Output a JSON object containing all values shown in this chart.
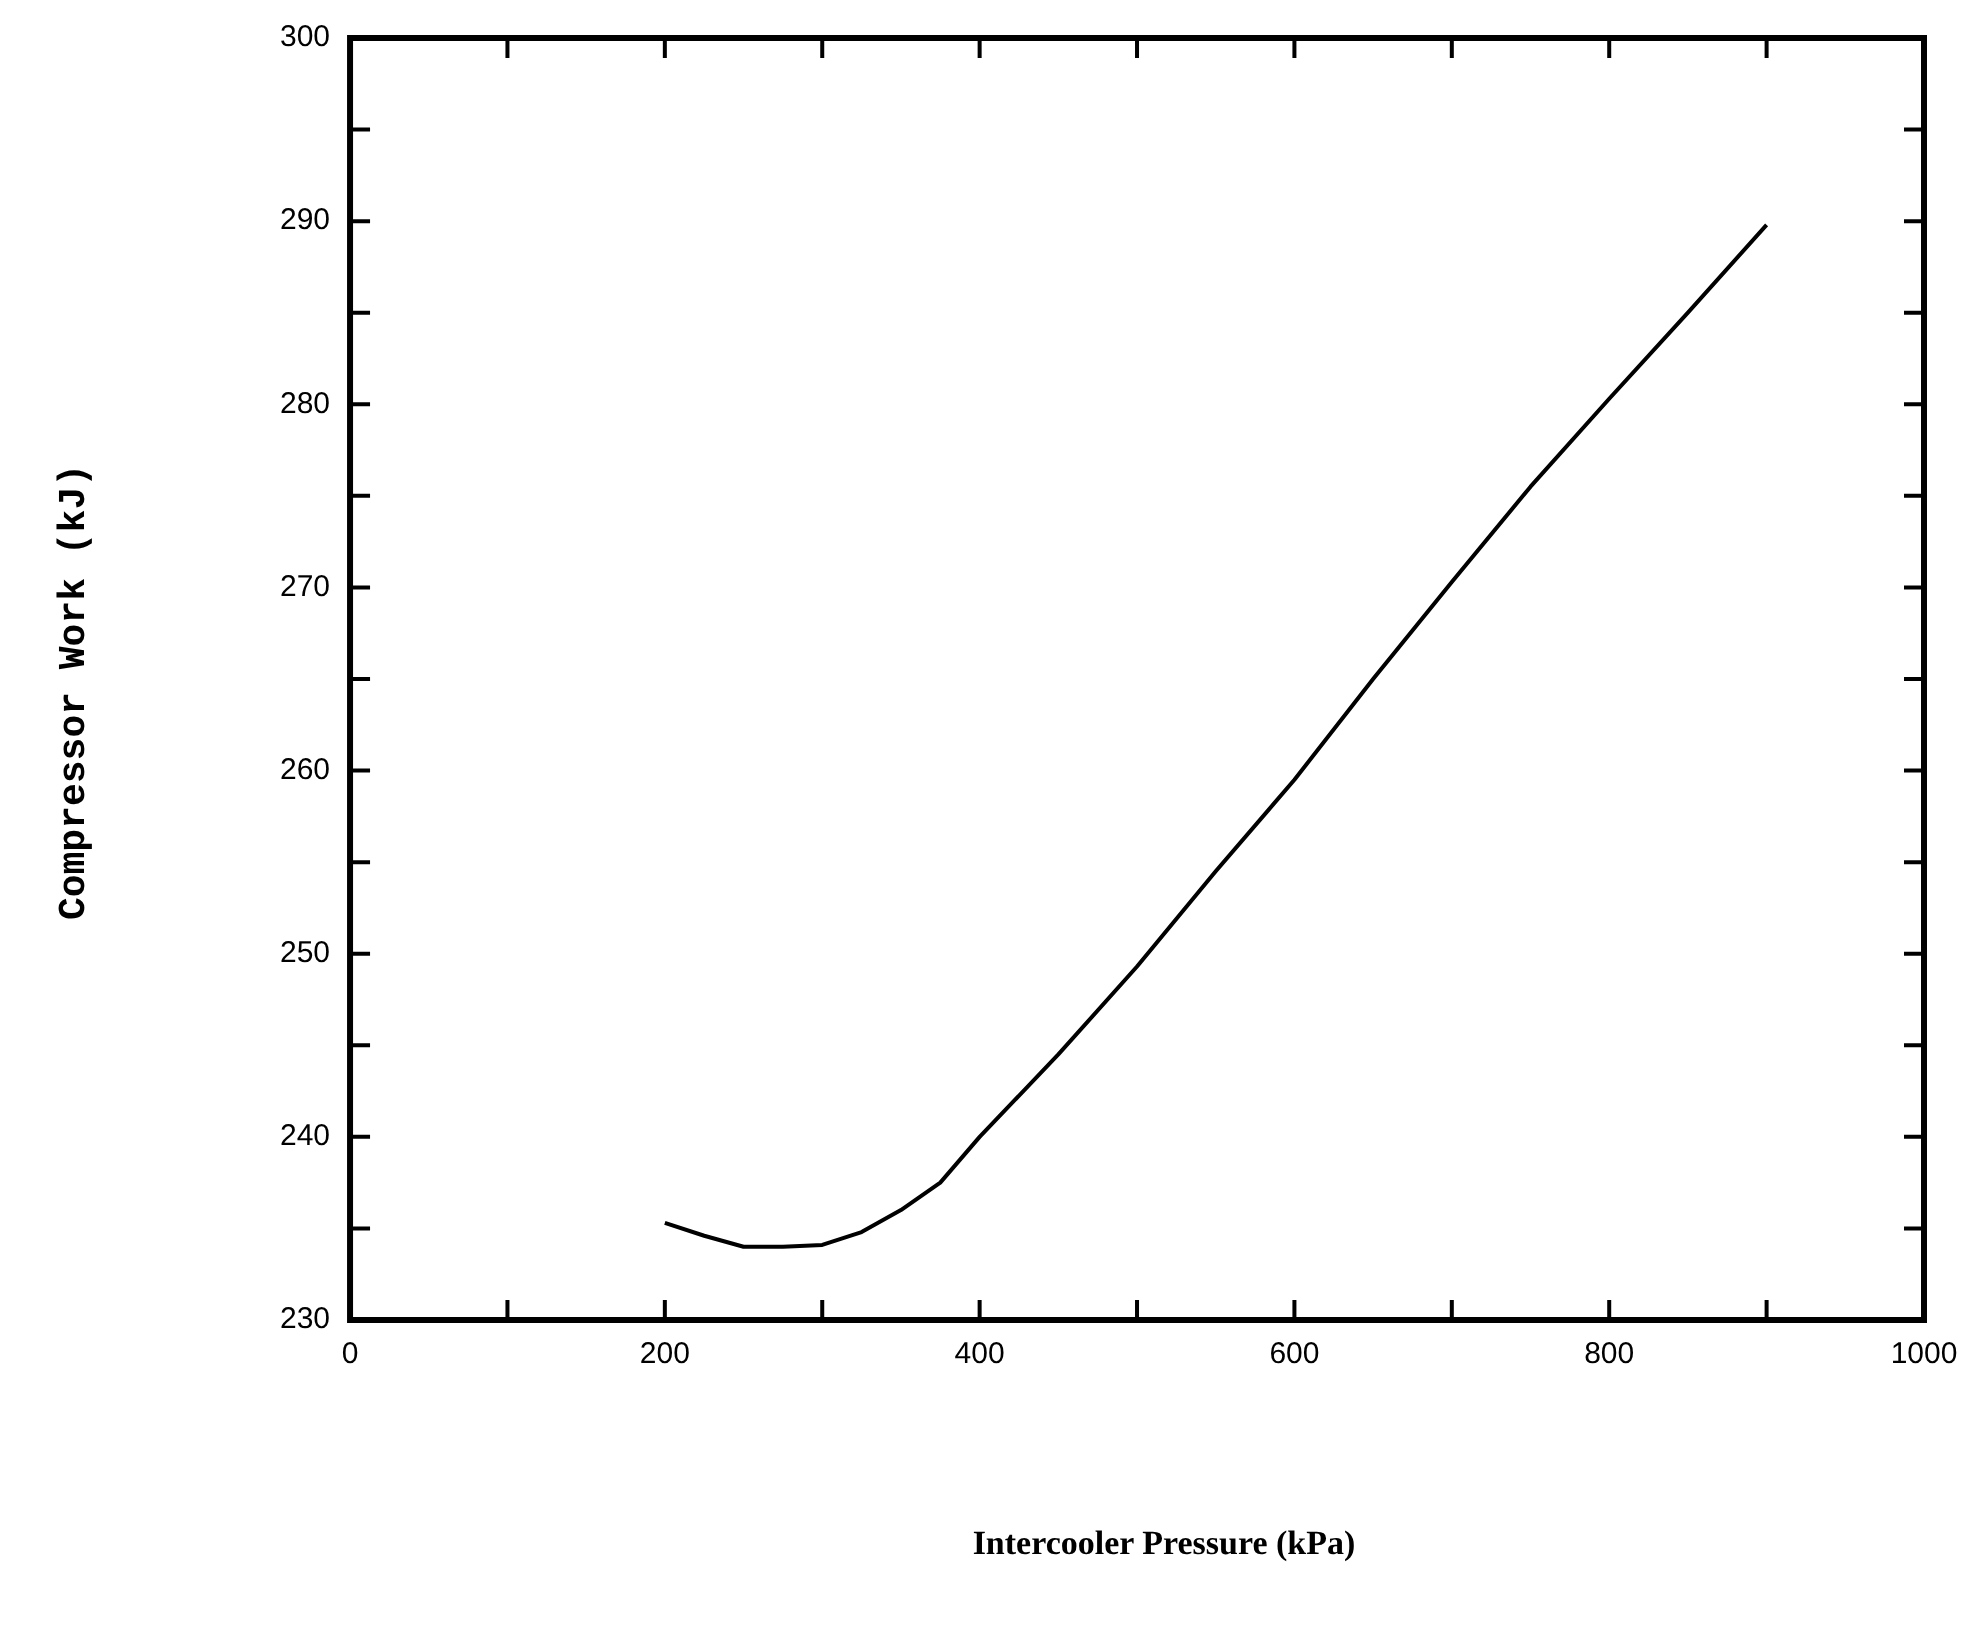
{
  "chart_data": {
    "type": "line",
    "xlabel": "Intercooler Pressure (kPa)",
    "ylabel": "Compressor Work (kJ)",
    "x": [
      200,
      225,
      250,
      275,
      300,
      325,
      350,
      375,
      400,
      450,
      500,
      550,
      600,
      650,
      700,
      750,
      800,
      850,
      900
    ],
    "series": [
      {
        "color": "#000000",
        "values": [
          235.3,
          234.6,
          234.0,
          234.0,
          234.1,
          234.8,
          236.0,
          237.5,
          240.0,
          244.5,
          249.3,
          254.5,
          259.5,
          265.0,
          270.3,
          275.5,
          280.3,
          285.0,
          289.8
        ]
      }
    ],
    "xlim": [
      0,
      1000
    ],
    "xticks": [
      0,
      {
        "value": 100,
        "label": null
      },
      200,
      {
        "value": 300,
        "label": null
      },
      400,
      {
        "value": 500,
        "label": null
      },
      600,
      {
        "value": 700,
        "label": null
      },
      800,
      {
        "value": 900,
        "label": null
      },
      1000
    ],
    "ylim": [
      230,
      300
    ],
    "yticks": [
      230,
      {
        "value": 235,
        "label": null
      },
      240,
      {
        "value": 245,
        "label": null
      },
      250,
      {
        "value": 255,
        "label": null
      },
      260,
      {
        "value": 265,
        "label": null
      },
      270,
      {
        "value": 275,
        "label": null
      },
      280,
      {
        "value": 285,
        "label": null
      },
      290,
      {
        "value": 295,
        "label": null
      },
      300
    ],
    "grid": false,
    "legend": false,
    "marker": "none",
    "line_style": "solid"
  }
}
